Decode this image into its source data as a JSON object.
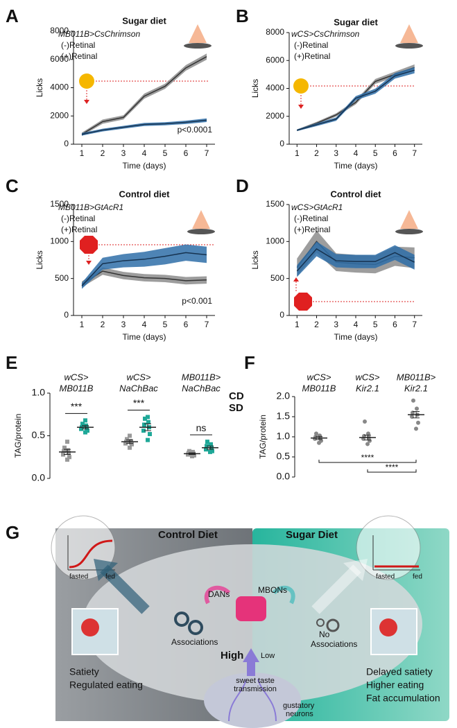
{
  "chart_data": [
    {
      "type": "line",
      "panel": "A",
      "title": "Sugar diet",
      "xlabel": "Time (days)",
      "ylabel": "Licks",
      "legend_title": "MB011B>CsChrimson",
      "legend_title_color": "#1a8a6e",
      "annotation": "p<0.0001",
      "x": [
        1,
        2,
        3,
        4,
        5,
        6,
        7
      ],
      "xlim": [
        0.6,
        7.4
      ],
      "xticks": [
        1,
        2,
        3,
        4,
        5,
        6,
        7
      ],
      "ylim": [
        0,
        8000
      ],
      "yticks": [
        0,
        2000,
        4000,
        6000,
        8000
      ],
      "series": [
        {
          "name": "(-)Retinal",
          "color": "#8c8c8c",
          "line_color": "#333333",
          "values": [
            700,
            1600,
            1900,
            3400,
            4100,
            5400,
            6200
          ],
          "errors": [
            120,
            150,
            150,
            180,
            180,
            200,
            220
          ]
        },
        {
          "name": "(+)Retinal",
          "color": "#2f6ea8",
          "line_color": "#16324f",
          "values": [
            700,
            1000,
            1200,
            1400,
            1450,
            1550,
            1700
          ],
          "errors": [
            90,
            100,
            100,
            110,
            110,
            120,
            130
          ]
        }
      ]
    },
    {
      "type": "line",
      "panel": "B",
      "title": "Sugar diet",
      "xlabel": "Time (days)",
      "ylabel": "Licks",
      "legend_title": "wCS>CsChrimson",
      "legend_title_color": "#111111",
      "x": [
        1,
        2,
        3,
        4,
        5,
        6,
        7
      ],
      "xlim": [
        0.6,
        7.4
      ],
      "xticks": [
        1,
        2,
        3,
        4,
        5,
        6,
        7
      ],
      "ylim": [
        0,
        8000
      ],
      "yticks": [
        0,
        2000,
        4000,
        6000,
        8000
      ],
      "series": [
        {
          "name": "(-)Retinal",
          "color": "#8c8c8c",
          "line_color": "#333333",
          "values": [
            1000,
            1500,
            2100,
            3000,
            4500,
            5000,
            5500
          ],
          "errors": [
            60,
            100,
            120,
            150,
            180,
            200,
            220
          ]
        },
        {
          "name": "(+)Retinal",
          "color": "#2f6ea8",
          "line_color": "#16324f",
          "values": [
            1000,
            1400,
            1800,
            3300,
            3800,
            4900,
            5300
          ],
          "errors": [
            60,
            100,
            120,
            150,
            180,
            200,
            220
          ]
        }
      ]
    },
    {
      "type": "line",
      "panel": "C",
      "title": "Control diet",
      "xlabel": "Time (days)",
      "ylabel": "Licks",
      "legend_title": "MB011B>GtAcR1",
      "legend_title_color": "#1a8a6e",
      "annotation": "p<0.001",
      "x": [
        1,
        2,
        3,
        4,
        5,
        6,
        7
      ],
      "xlim": [
        0.6,
        7.4
      ],
      "xticks": [
        1,
        2,
        3,
        4,
        5,
        6,
        7
      ],
      "ylim": [
        0,
        1500
      ],
      "yticks": [
        0,
        500,
        1000,
        1500
      ],
      "series": [
        {
          "name": "(-)Retinal",
          "color": "#8c8c8c",
          "line_color": "#333333",
          "values": [
            420,
            600,
            540,
            510,
            500,
            470,
            480
          ],
          "errors": [
            40,
            50,
            50,
            50,
            50,
            50,
            50
          ]
        },
        {
          "name": "(+)Retinal",
          "color": "#2f6ea8",
          "line_color": "#16324f",
          "values": [
            400,
            700,
            740,
            760,
            800,
            850,
            820
          ],
          "errors": [
            40,
            80,
            90,
            100,
            110,
            110,
            110
          ]
        }
      ]
    },
    {
      "type": "line",
      "panel": "D",
      "title": "Control diet",
      "xlabel": "Time (days)",
      "ylabel": "Licks",
      "legend_title": "wCS>GtAcR1",
      "legend_title_color": "#111111",
      "x": [
        1,
        2,
        3,
        4,
        5,
        6,
        7
      ],
      "xlim": [
        0.6,
        7.4
      ],
      "xticks": [
        1,
        2,
        3,
        4,
        5,
        6,
        7
      ],
      "ylim": [
        0,
        1500
      ],
      "yticks": [
        0,
        500,
        1000,
        1500
      ],
      "series": [
        {
          "name": "(-)Retinal",
          "color": "#8c8c8c",
          "line_color": "#333333",
          "values": [
            650,
            1000,
            720,
            700,
            690,
            800,
            780
          ],
          "errors": [
            120,
            150,
            120,
            120,
            120,
            130,
            140
          ]
        },
        {
          "name": "(+)Retinal",
          "color": "#2f6ea8",
          "line_color": "#16324f",
          "values": [
            600,
            900,
            740,
            730,
            730,
            850,
            720
          ],
          "errors": [
            80,
            100,
            90,
            90,
            90,
            100,
            100
          ]
        }
      ]
    },
    {
      "type": "dot",
      "panel": "E",
      "ylabel": "TAG/protein",
      "categories": [
        [
          "wCS>",
          "MB011B"
        ],
        [
          "wCS>",
          "NaChBac"
        ],
        [
          "MB011B>",
          "NaChBac"
        ]
      ],
      "category_colors": [
        "#111111",
        "#111111",
        "#1a8a6e"
      ],
      "ylim": [
        0,
        1
      ],
      "yticks": [
        {
          "value": 0,
          "label": "0.0"
        },
        0.5,
        {
          "value": 1,
          "label": "1.0"
        }
      ],
      "significance": [
        "***",
        "***",
        "ns"
      ],
      "series": [
        {
          "name": "CD",
          "color": "#999999",
          "points": [
            [
              0.22,
              0.25,
              0.28,
              0.3,
              0.32,
              0.33,
              0.36,
              0.43
            ],
            [
              0.36,
              0.4,
              0.41,
              0.42,
              0.43,
              0.44,
              0.46,
              0.5
            ],
            [
              0.26,
              0.27,
              0.28,
              0.29,
              0.3,
              0.31,
              0.32
            ]
          ],
          "means": [
            0.31,
            0.43,
            0.29
          ],
          "sems": [
            0.03,
            0.02,
            0.01
          ]
        },
        {
          "name": "SD",
          "color": "#1fa898",
          "points": [
            [
              0.54,
              0.56,
              0.58,
              0.59,
              0.6,
              0.62,
              0.64,
              0.68
            ],
            [
              0.45,
              0.52,
              0.56,
              0.6,
              0.63,
              0.66,
              0.7,
              0.72
            ],
            [
              0.31,
              0.32,
              0.34,
              0.36,
              0.38,
              0.4,
              0.43
            ]
          ],
          "means": [
            0.6,
            0.6,
            0.36
          ],
          "sems": [
            0.02,
            0.04,
            0.02
          ]
        }
      ]
    },
    {
      "type": "dot",
      "panel": "F",
      "ylabel": "TAG/protein",
      "categories": [
        [
          "wCS>",
          "MB011B"
        ],
        [
          "wCS>",
          "Kir2.1"
        ],
        [
          "MB011B>",
          "Kir2.1"
        ]
      ],
      "category_colors": [
        "#111111",
        "#111111",
        "#1a8a6e"
      ],
      "ylim": [
        0,
        2
      ],
      "yticks": [
        {
          "value": 0,
          "label": "0.0"
        },
        0.5,
        {
          "value": 1,
          "label": "1.0"
        },
        1.5,
        {
          "value": 2,
          "label": "2.0"
        }
      ],
      "comparisons": [
        "****",
        "****"
      ],
      "series": [
        {
          "color": "#888888",
          "points": [
            [
              0.85,
              0.9,
              0.95,
              0.97,
              1.0,
              1.03,
              1.08
            ],
            [
              0.82,
              0.9,
              0.95,
              0.98,
              1.02,
              1.08,
              1.38
            ],
            [
              1.2,
              1.35,
              1.5,
              1.55,
              1.6,
              1.7,
              1.9
            ]
          ],
          "means": [
            0.97,
            0.98,
            1.55
          ],
          "sems": [
            0.04,
            0.06,
            0.08
          ]
        }
      ]
    }
  ],
  "diagram": {
    "panel": "G",
    "left_title": "Control Diet",
    "right_title": "Sugar Diet",
    "left_inset": [
      "fasted",
      "fed"
    ],
    "right_inset": [
      "fasted",
      "fed"
    ],
    "dans": "DANs",
    "mbons": "MBONs",
    "associations": "Associations",
    "no_associations": [
      "No",
      "Associations"
    ],
    "high": "High",
    "low": "Low",
    "sweet": [
      "sweet taste",
      "transmission"
    ],
    "gustatory": [
      "gustatory",
      "neurons"
    ],
    "left_outcome": [
      "Satiety",
      "Regulated eating"
    ],
    "right_outcome": [
      "Delayed satiety",
      "Higher eating",
      "Fat accumulation"
    ]
  }
}
